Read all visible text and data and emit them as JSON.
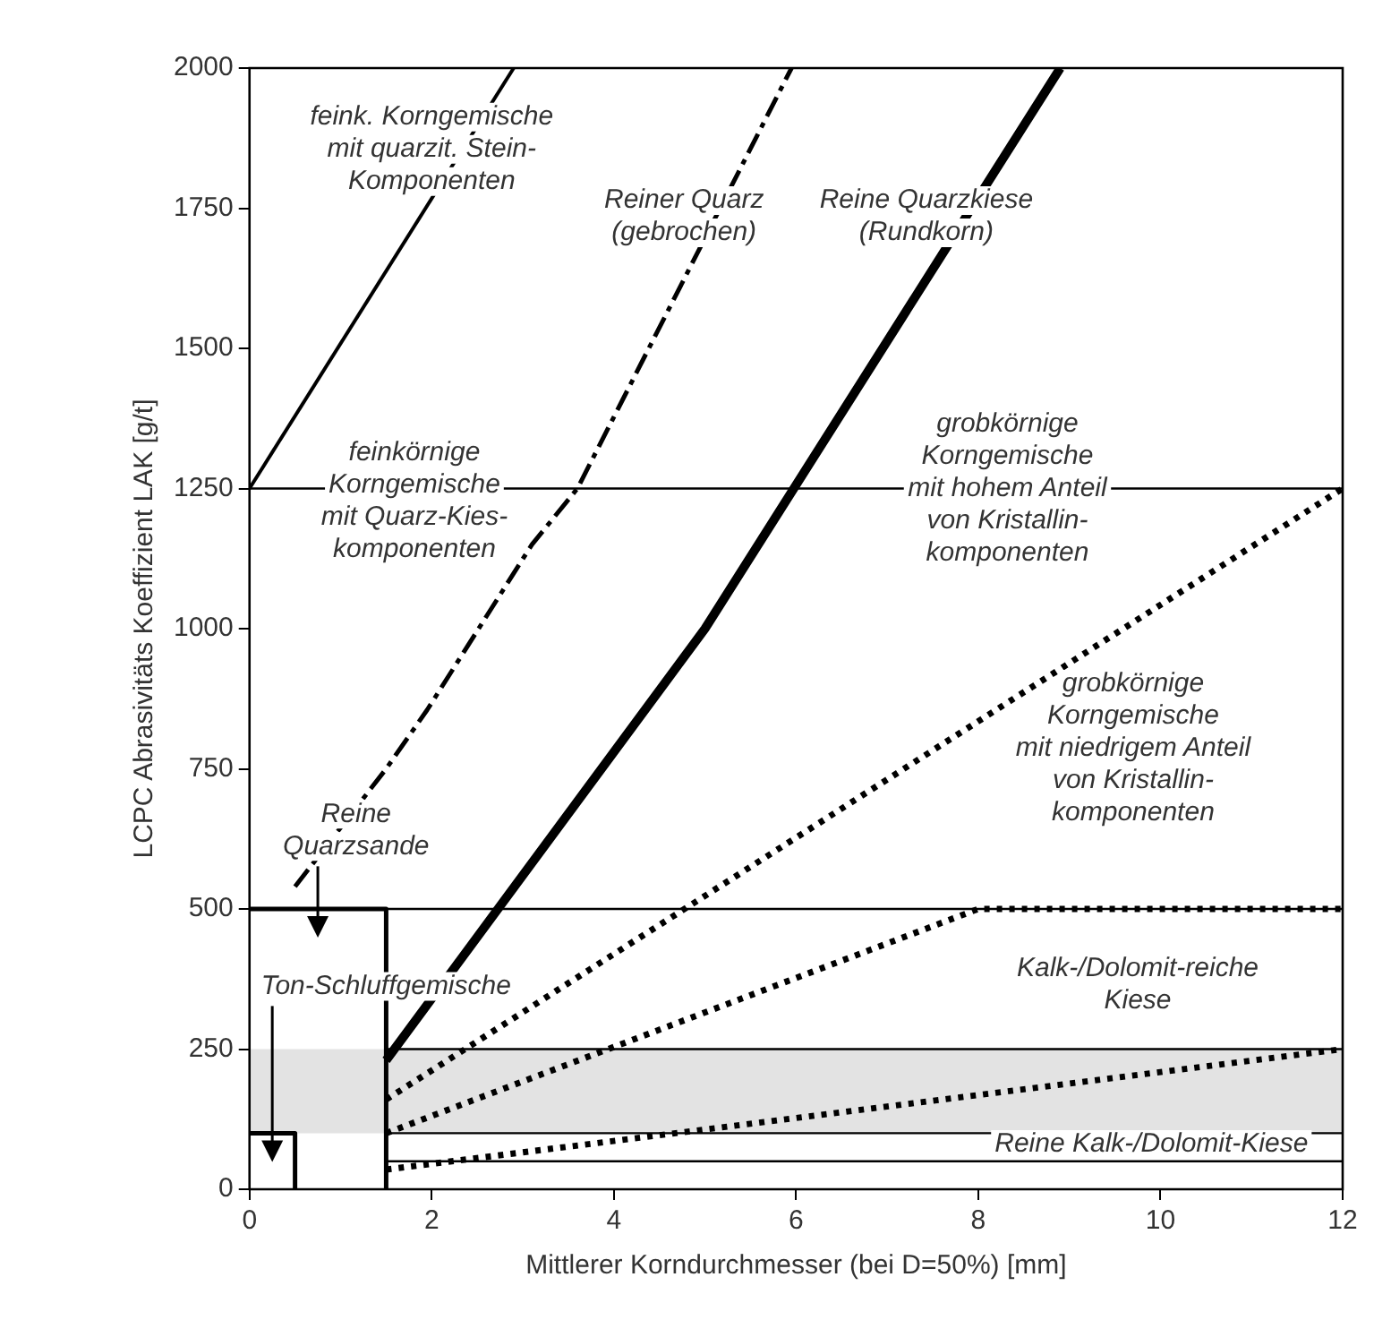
{
  "chart_data": {
    "type": "line",
    "xlabel": "Mittlerer Korndurchmesser (bei D=50%) [mm]",
    "ylabel": "LCPC Abrasivitäts Koeffizient LAK [g/t]",
    "xlim": [
      0,
      12
    ],
    "xticks": [
      0,
      2,
      4,
      6,
      8,
      10,
      12
    ],
    "ylim": [
      0,
      2000
    ],
    "yticks": [
      0,
      250,
      500,
      750,
      1000,
      1250,
      1500,
      1750,
      2000
    ],
    "grid": false,
    "legend": false,
    "marker": "none",
    "series": [
      {
        "color": "#000000",
        "line_style": "solid",
        "x": [
          0,
          2.9
        ],
        "values": [
          1250,
          2000
        ]
      },
      {
        "color": "#000000",
        "line_style": "dashed",
        "x": [
          0.5,
          1.5,
          1.95,
          3.1,
          3.6,
          5.95
        ],
        "values": [
          540,
          750,
          855,
          1150,
          1250,
          2000
        ]
      },
      {
        "color": "#000000",
        "line_style": "solid",
        "x": [
          1.5,
          5,
          8.9
        ],
        "values": [
          230,
          1000,
          2000
        ]
      },
      {
        "color": "#000000",
        "line_style": "dotted",
        "x": [
          1.5,
          12
        ],
        "values": [
          160,
          1250
        ]
      },
      {
        "color": "#000000",
        "line_style": "dotted",
        "x": [
          1.5,
          8,
          12
        ],
        "values": [
          100,
          500,
          500
        ]
      },
      {
        "color": "#000000",
        "line_style": "dotted",
        "x": [
          1.5,
          12
        ],
        "values": [
          35,
          250
        ]
      },
      {
        "color": "#000000",
        "line_style": "solid",
        "x": [
          1.5,
          12
        ],
        "values": [
          250,
          250
        ]
      },
      {
        "color": "#000000",
        "line_style": "solid",
        "x": [
          1.5,
          12
        ],
        "values": [
          100,
          100
        ]
      },
      {
        "color": "#000000",
        "line_style": "solid",
        "x": [
          1.5,
          12
        ],
        "values": [
          50,
          50
        ]
      },
      {
        "color": "#000000",
        "line_style": "solid",
        "x": [
          0,
          1.5,
          1.5
        ],
        "values": [
          500,
          500,
          0
        ]
      },
      {
        "color": "#000000",
        "line_style": "solid",
        "x": [
          0,
          0.5,
          0.5
        ],
        "values": [
          100,
          100,
          0
        ]
      }
    ],
    "bands": [
      {
        "axis": "y",
        "from": 100,
        "to": 250,
        "color": "#e3e3e3"
      }
    ],
    "ref_lines": [
      {
        "axis": "y",
        "value": 1250,
        "color": "#000000"
      },
      {
        "axis": "y",
        "value": 500,
        "color": "#000000"
      }
    ],
    "annotations": [
      "feink. Korngemische\nmit quarzit. Stein-\nKomponenten",
      "Reiner Quarz\n(gebrochen)",
      "Reine Quarzkiese\n(Rundkorn)",
      "feinkörnige\nKorngemische\nmit Quarz-Kies-\nkomponenten",
      {
        "text": "grobkörnige\nKorngemische\nmit hohem Anteil\nvon Kristallin-\nkomponenten",
        "x": 8.32,
        "y": 1250
      },
      "grobkörnige\nKorngemische\nmit niedrigem Anteil\nvon Kristallin-\nkomponenten",
      "Kalk-/Dolomit-reiche\nKiese",
      "Reine Kalk-/Dolomit-Kiese",
      "Reine\nQuarzsande",
      "Ton-Schluffgemische"
    ]
  }
}
